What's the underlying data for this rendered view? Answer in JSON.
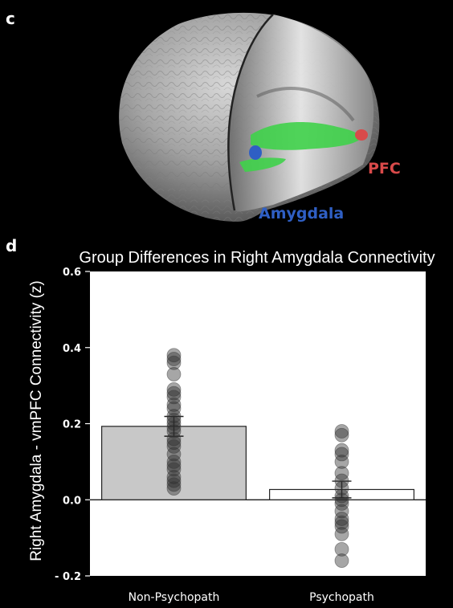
{
  "panels": {
    "c": {
      "letter": "c",
      "labels": {
        "pfc": "PFC",
        "amygdala": "Amygdala"
      },
      "colors": {
        "pfc": "#d94a4a",
        "amygdala": "#2f5fc4",
        "tract": "#3fd14a",
        "brain": "#9a9a9a"
      }
    },
    "d": {
      "letter": "d"
    }
  },
  "chart_data": {
    "type": "bar",
    "title": "Group Differences in Right Amygdala Connectivity",
    "xlabel": "",
    "ylabel": "Right Amygdala - vmPFC Connectivity (z)",
    "ylim": [
      -0.2,
      0.6
    ],
    "yticks": [
      -0.2,
      0.0,
      0.2,
      0.4,
      0.6
    ],
    "ytick_labels": [
      "- 0.2",
      "0.0",
      "0.2",
      "0.4",
      "0.6"
    ],
    "categories": [
      "Non-Psychopath",
      "Psychopath"
    ],
    "values": [
      0.193,
      0.027
    ],
    "error": [
      0.026,
      0.022
    ],
    "bar_colors": [
      "#c8c8c8",
      "#ffffff"
    ],
    "points": [
      [
        0.38,
        0.37,
        0.36,
        0.33,
        0.29,
        0.28,
        0.27,
        0.25,
        0.24,
        0.22,
        0.21,
        0.2,
        0.19,
        0.18,
        0.16,
        0.15,
        0.14,
        0.12,
        0.1,
        0.09,
        0.08,
        0.06,
        0.05,
        0.04,
        0.03
      ],
      [
        0.18,
        0.17,
        0.13,
        0.12,
        0.1,
        0.07,
        0.05,
        0.03,
        0.01,
        0.0,
        -0.01,
        -0.03,
        -0.05,
        -0.06,
        -0.07,
        -0.09,
        -0.13,
        -0.16
      ]
    ]
  }
}
